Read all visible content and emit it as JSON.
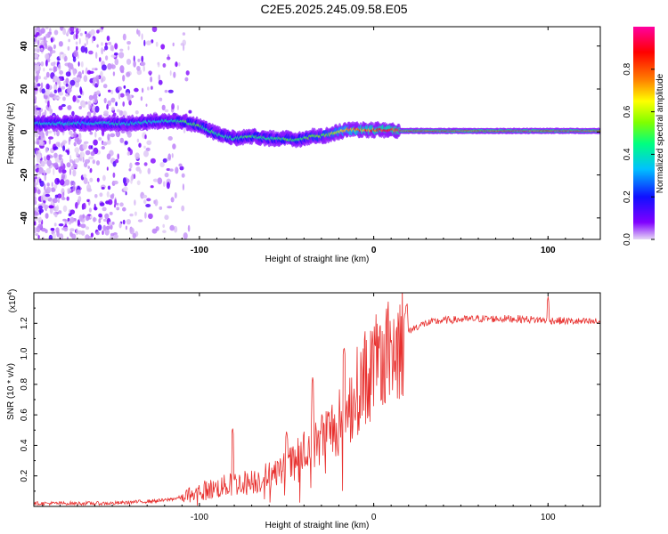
{
  "title": "C2E5.2025.245.09.58.E05",
  "chart_data": [
    {
      "type": "heatmap",
      "title": "",
      "xlabel": "Height of straight line (km)",
      "ylabel": "Frequency (Hz)",
      "xlim": [
        -195,
        130
      ],
      "ylim": [
        -50,
        49
      ],
      "xticks": [
        -100,
        0,
        100
      ],
      "xtick_labels": [
        "-100",
        "0",
        "100"
      ],
      "yticks": [
        -40,
        -20,
        0,
        20,
        40
      ],
      "ytick_labels": [
        "-40",
        "-20",
        "0",
        "20",
        "40"
      ],
      "colorbar": {
        "label": "Normalized spectral amplitude",
        "range": [
          0,
          1
        ],
        "ticks": [
          0,
          0.2,
          0.4,
          0.6,
          0.8
        ],
        "tick_labels": [
          "0.0",
          "0.2",
          "0.4",
          "0.6",
          "0.8"
        ],
        "colormap": [
          "#e6d8f5",
          "#8000ff",
          "#1010ff",
          "#00c0ff",
          "#00ff80",
          "#80ff00",
          "#ffff00",
          "#ff8000",
          "#ff0000",
          "#ff00a0"
        ]
      },
      "ridge": {
        "height_km": [
          -160,
          -140,
          -120,
          -110,
          -100,
          -90,
          -80,
          -70,
          -60,
          -50,
          -45,
          -40,
          -35,
          -30,
          -25,
          -20,
          -15,
          -10,
          -5,
          0,
          5,
          10,
          15,
          130
        ],
        "frequency_hz": [
          4,
          4,
          5,
          5,
          3,
          -1,
          -3,
          -2,
          -3,
          -3,
          -4,
          -3,
          -2,
          -2,
          -1,
          0,
          1,
          1,
          1,
          1,
          1,
          1,
          0.5,
          0.5
        ],
        "amplitude": [
          0.4,
          0.4,
          0.4,
          0.45,
          0.5,
          0.45,
          0.45,
          0.5,
          0.45,
          0.5,
          0.5,
          0.5,
          0.55,
          0.55,
          0.6,
          0.7,
          0.75,
          0.8,
          0.85,
          0.85,
          0.9,
          0.9,
          0.95,
          0.95
        ]
      },
      "noise_region_km": [
        -195,
        -115
      ]
    },
    {
      "type": "line",
      "title": "",
      "xlabel": "Height of straight line (km)",
      "ylabel": "SNR (10 * v/v)",
      "y_scale_note": "(x10",
      "y_scale_exp": "4",
      "xlim": [
        -195,
        130
      ],
      "ylim": [
        0,
        1.4
      ],
      "xticks": [
        -100,
        0,
        100
      ],
      "xtick_labels": [
        "-100",
        "0",
        "100"
      ],
      "yticks": [
        0.2,
        0.4,
        0.6,
        0.8,
        1.0,
        1.2
      ],
      "ytick_labels": [
        "0.2",
        "0.4",
        "0.6",
        "0.8",
        "1.0",
        "1.2"
      ],
      "color": "#e8302e",
      "series": [
        {
          "name": "SNR envelope",
          "x": [
            -195,
            -150,
            -120,
            -110,
            -100,
            -90,
            -80,
            -70,
            -60,
            -50,
            -40,
            -30,
            -25,
            -20,
            -15,
            -10,
            -5,
            0,
            5,
            10,
            15,
            20,
            25,
            30,
            40,
            60,
            80,
            100,
            120,
            130
          ],
          "y": [
            0.02,
            0.02,
            0.04,
            0.06,
            0.1,
            0.12,
            0.15,
            0.16,
            0.2,
            0.25,
            0.35,
            0.45,
            0.5,
            0.55,
            0.6,
            0.75,
            0.85,
            0.9,
            0.95,
            1.0,
            1.1,
            1.15,
            1.18,
            1.2,
            1.22,
            1.23,
            1.23,
            1.22,
            1.21,
            1.21
          ]
        }
      ],
      "peaks": [
        {
          "x": -81,
          "y": 0.52
        },
        {
          "x": -50,
          "y": 0.5
        },
        {
          "x": -35,
          "y": 0.85
        },
        {
          "x": -17,
          "y": 1.05
        },
        {
          "x": 10,
          "y": 1.1
        },
        {
          "x": 18,
          "y": 1.28
        },
        {
          "x": 100,
          "y": 1.38
        }
      ]
    }
  ]
}
